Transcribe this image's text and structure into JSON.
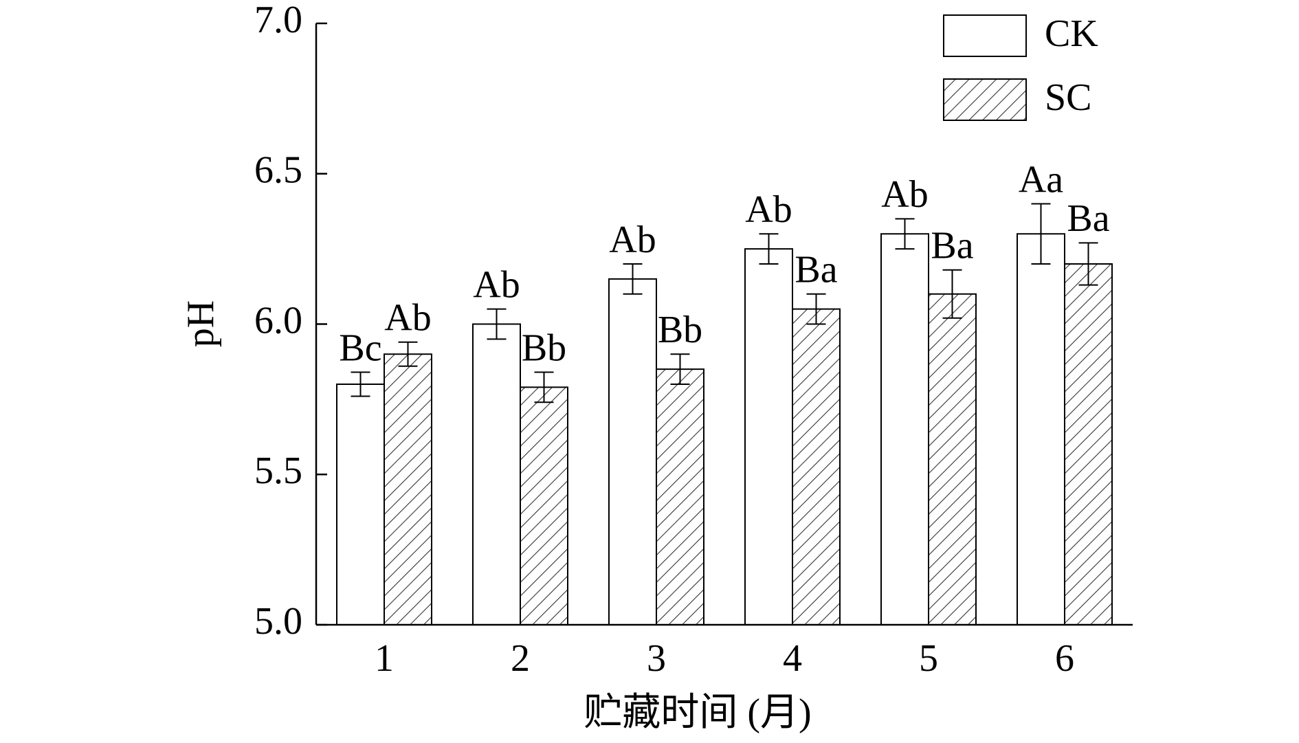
{
  "chart_data": {
    "type": "bar",
    "x_label": "贮藏时间 (月)",
    "y_label": "pH",
    "categories": [
      "1",
      "2",
      "3",
      "4",
      "5",
      "6"
    ],
    "series": [
      {
        "name": "CK",
        "color": "#ffffff",
        "hatch": false,
        "values": [
          5.8,
          6.0,
          6.15,
          6.25,
          6.3,
          6.3
        ],
        "errors": [
          0.04,
          0.05,
          0.05,
          0.05,
          0.05,
          0.1
        ],
        "letters": [
          "Bc",
          "Ab",
          "Ab",
          "Ab",
          "Ab",
          "Aa"
        ]
      },
      {
        "name": "SC",
        "color": "#ffffff",
        "hatch": true,
        "values": [
          5.9,
          5.79,
          5.85,
          6.05,
          6.1,
          6.2
        ],
        "errors": [
          0.04,
          0.05,
          0.05,
          0.05,
          0.08,
          0.07
        ],
        "letters": [
          "Ab",
          "Bb",
          "Bb",
          "Ba",
          "Ba",
          "Ba"
        ]
      }
    ],
    "ylim": [
      5.0,
      7.0
    ],
    "yticks": [
      {
        "value": 5.0,
        "label": "5.0"
      },
      5.5,
      {
        "value": 6.0,
        "label": "6.0"
      },
      6.5,
      {
        "value": 7.0,
        "label": "7.0"
      }
    ],
    "legend": "upper right"
  }
}
